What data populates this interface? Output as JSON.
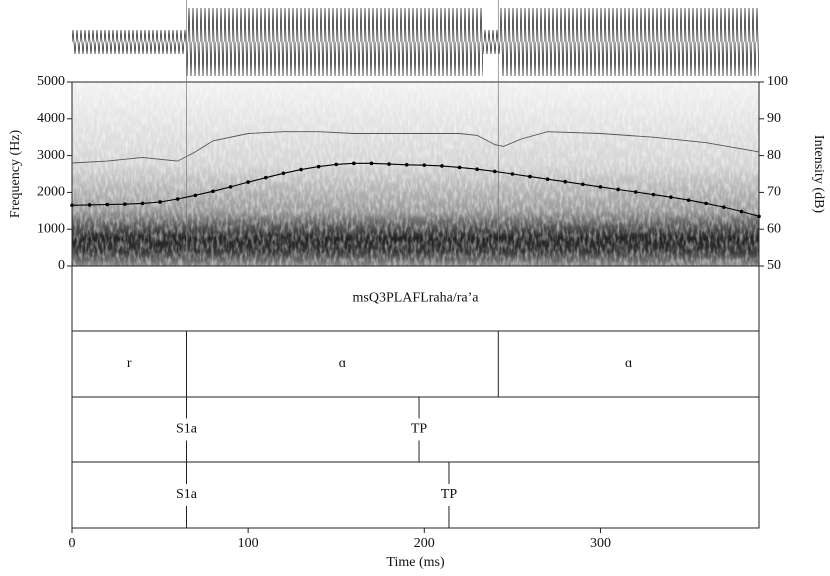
{
  "chart_data": {
    "type": "praat",
    "x_label": "Time (ms)",
    "xlim": [
      0,
      390
    ],
    "xticks": [
      0,
      100,
      200,
      300
    ],
    "y_label": "Frequency (Hz)",
    "ylim": [
      0,
      5000
    ],
    "yticks": [
      0,
      1000,
      2000,
      3000,
      4000,
      5000
    ],
    "y2_label": "Intensity (dB)",
    "y2lim": [
      50,
      100
    ],
    "y2ticks": [
      50,
      60,
      70,
      80,
      90,
      100
    ],
    "series": [
      {
        "color": "#000000",
        "x": [
          0,
          10,
          20,
          30,
          40,
          50,
          60,
          70,
          80,
          90,
          100,
          110,
          120,
          130,
          140,
          150,
          160,
          170,
          180,
          190,
          200,
          210,
          220,
          230,
          240,
          250,
          260,
          270,
          280,
          290,
          300,
          310,
          320,
          330,
          340,
          350,
          360,
          370,
          380,
          390
        ],
        "values": [
          1650,
          1660,
          1670,
          1680,
          1700,
          1740,
          1820,
          1920,
          2030,
          2150,
          2280,
          2400,
          2520,
          2620,
          2700,
          2760,
          2790,
          2790,
          2770,
          2750,
          2740,
          2720,
          2680,
          2630,
          2570,
          2500,
          2430,
          2360,
          2290,
          2220,
          2150,
          2080,
          2010,
          1940,
          1870,
          1790,
          1700,
          1600,
          1480,
          1350
        ]
      },
      {
        "color": "#555555",
        "axis": "y2",
        "x": [
          0,
          20,
          40,
          50,
          60,
          70,
          80,
          100,
          120,
          140,
          160,
          180,
          200,
          220,
          230,
          240,
          245,
          255,
          270,
          300,
          330,
          360,
          390
        ],
        "values": [
          78,
          78.5,
          79.5,
          79,
          78.5,
          81,
          84,
          86,
          86.5,
          86.5,
          86,
          86,
          86,
          86,
          85.5,
          83,
          82.5,
          84.5,
          86.5,
          86,
          85,
          83.5,
          81
        ]
      }
    ],
    "tiers": [
      {
        "kind": "interval",
        "boundaries": [],
        "labels": [
          "msQ3PLAFLraha/ra’a"
        ]
      },
      {
        "kind": "interval",
        "boundaries": [
          65,
          242
        ],
        "labels": [
          "r",
          "ɑ",
          "ɑ"
        ]
      },
      {
        "kind": "point",
        "times": [
          65,
          197
        ],
        "labels": [
          "S1a",
          "TP"
        ]
      },
      {
        "kind": "point",
        "times": [
          65,
          214
        ],
        "labels": [
          "S1a",
          "TP"
        ]
      }
    ]
  }
}
